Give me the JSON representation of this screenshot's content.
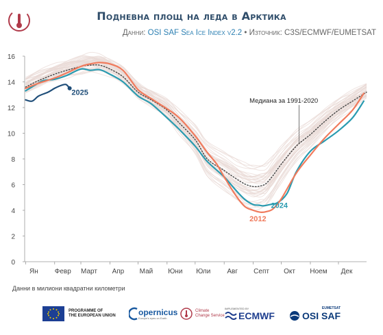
{
  "header": {
    "title": "Подневна площ на леда в Арктика",
    "subtitle_prefix": "Данни: ",
    "subtitle_source": "OSI SAF Sea Ice Index v2.2",
    "subtitle_sep": " • ",
    "subtitle_suffix": "Източник: C3S/ECMWF/EUMETSAT"
  },
  "footnote": "Данни в милиони квадратни километри",
  "logos": {
    "eu_line1": "PROGRAMME OF",
    "eu_line2": "THE EUROPEAN UNION",
    "copernicus": "opernicus",
    "copernicus_sub": "Europe's eyes on Earth",
    "c3s_line1": "Climate",
    "c3s_line2": "Change Service",
    "ecmwf_top": "IMPLEMENTED BY",
    "ecmwf": "ECMWF",
    "eumetsat": "EUMETSAT",
    "osisaf": "OSI SAF"
  },
  "colors": {
    "y2025": "#1f4e79",
    "y2024": "#2a9bb0",
    "y2012": "#f07a5c",
    "median": "#444444",
    "history": "#e8d8d4",
    "title": "#2f4d6a",
    "source": "#2b7fb2"
  },
  "chart_data": {
    "type": "line",
    "xlabel": "",
    "ylabel": "",
    "ylim": [
      0,
      16
    ],
    "yticks": [
      0,
      2,
      4,
      6,
      8,
      10,
      12,
      14,
      16
    ],
    "xlim": [
      0,
      365
    ],
    "month_labels": [
      "Ян",
      "Февр",
      "Март",
      "Апр",
      "Май",
      "Юни",
      "Юли",
      "Авг",
      "Септ",
      "Окт",
      "Ноем",
      "Дек"
    ],
    "month_positions": [
      1,
      32,
      60,
      91,
      121,
      152,
      182,
      213,
      244,
      274,
      305,
      335
    ],
    "grid": false,
    "legend": "inline labels",
    "annotations": [
      {
        "text": "Медиана за 1991-2020",
        "series": "Медиана за 1991-2020"
      },
      {
        "text": "2025",
        "series": "2025"
      },
      {
        "text": "2024",
        "series": "2024"
      },
      {
        "text": "2012",
        "series": "2012"
      }
    ],
    "series": [
      {
        "name": "Медиана за 1991-2020",
        "style": "dotted",
        "x": [
          1,
          15,
          32,
          45,
          60,
          70,
          80,
          91,
          105,
          121,
          135,
          152,
          165,
          182,
          195,
          213,
          225,
          235,
          244,
          252,
          258,
          265,
          274,
          290,
          305,
          320,
          335,
          350,
          365
        ],
        "y": [
          13.6,
          14.1,
          14.6,
          14.9,
          15.2,
          15.3,
          15.3,
          15.0,
          14.4,
          13.2,
          12.6,
          11.8,
          10.8,
          9.5,
          8.0,
          7.1,
          6.5,
          6.05,
          5.85,
          5.9,
          6.1,
          6.7,
          7.6,
          9.0,
          9.9,
          10.9,
          11.8,
          12.5,
          13.2
        ]
      },
      {
        "name": "2024",
        "x": [
          1,
          10,
          20,
          32,
          45,
          60,
          70,
          80,
          91,
          105,
          121,
          135,
          152,
          165,
          182,
          195,
          213,
          225,
          235,
          244,
          250,
          255,
          262,
          270,
          280,
          290,
          305,
          320,
          335,
          350,
          362
        ],
        "y": [
          13.3,
          13.7,
          14.1,
          14.2,
          14.5,
          15.0,
          14.9,
          14.95,
          14.6,
          14.0,
          12.9,
          12.3,
          11.2,
          10.3,
          9.0,
          7.8,
          6.6,
          5.6,
          4.85,
          4.45,
          4.4,
          4.35,
          4.45,
          4.6,
          5.3,
          7.0,
          8.6,
          9.4,
          10.2,
          11.2,
          12.5
        ]
      },
      {
        "name": "2012",
        "x": [
          1,
          15,
          32,
          45,
          60,
          70,
          80,
          91,
          105,
          121,
          135,
          152,
          165,
          182,
          195,
          205,
          213,
          225,
          235,
          244,
          252,
          258,
          265,
          274,
          290,
          305,
          320,
          335,
          350,
          362
        ],
        "y": [
          13.5,
          13.9,
          14.3,
          14.7,
          15.2,
          15.4,
          15.5,
          15.4,
          14.9,
          13.4,
          12.7,
          11.9,
          11.2,
          9.8,
          8.5,
          7.6,
          6.6,
          5.2,
          4.3,
          4.0,
          3.85,
          3.9,
          4.1,
          4.9,
          6.9,
          8.3,
          9.6,
          10.7,
          11.8,
          13.1
        ]
      },
      {
        "name": "2025",
        "x": [
          1,
          8,
          15,
          25,
          32,
          38,
          44,
          48
        ],
        "y": [
          12.6,
          12.5,
          12.9,
          13.2,
          13.5,
          13.7,
          13.8,
          13.5
        ]
      }
    ]
  }
}
